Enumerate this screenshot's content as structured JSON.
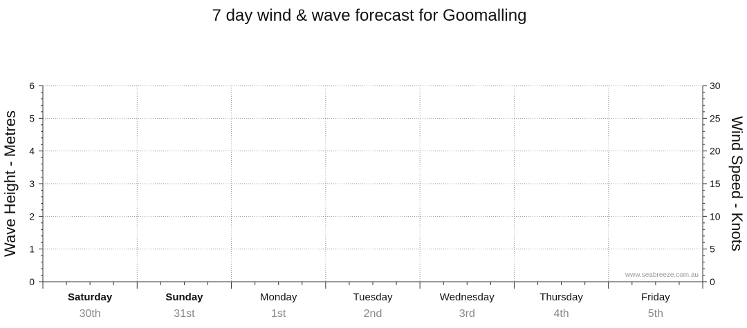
{
  "chart_data": {
    "type": "line",
    "title": "7 day wind & wave forecast for Goomalling",
    "ylabel_left": "Wave Height - Metres",
    "ylabel_right": "Wind Speed - Knots",
    "ylim_left": [
      0,
      6
    ],
    "ylim_right": [
      0,
      30
    ],
    "yticks_left": [
      "0",
      "1",
      "2",
      "3",
      "4",
      "5",
      "6"
    ],
    "yticks_right": [
      "0",
      "5",
      "10",
      "15",
      "20",
      "25",
      "30"
    ],
    "days": [
      {
        "day": "Saturday",
        "date": "30th",
        "bold": true
      },
      {
        "day": "Sunday",
        "date": "31st",
        "bold": true
      },
      {
        "day": "Monday",
        "date": "1st",
        "bold": false
      },
      {
        "day": "Tuesday",
        "date": "2nd",
        "bold": false
      },
      {
        "day": "Wednesday",
        "date": "3rd",
        "bold": false
      },
      {
        "day": "Thursday",
        "date": "4th",
        "bold": false
      },
      {
        "day": "Friday",
        "date": "5th",
        "bold": false
      }
    ],
    "grid": true,
    "series": []
  },
  "watermark": "www.seabreeze.com.au"
}
